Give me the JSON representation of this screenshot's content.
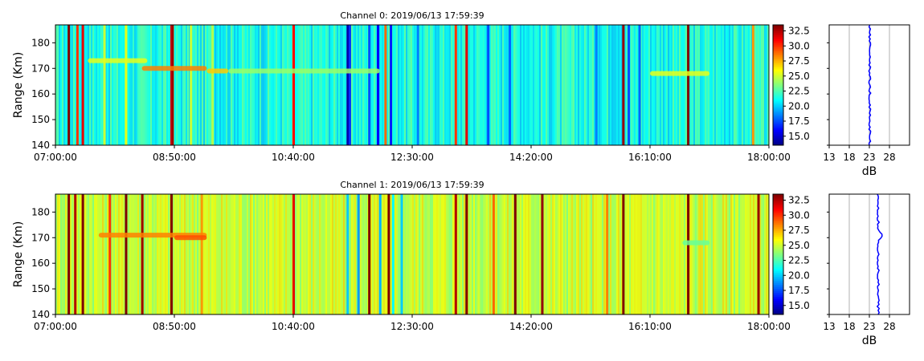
{
  "chart_data": [
    {
      "type": "heatmap",
      "title": "Channel 0: 2019/06/13 17:59:39",
      "ylabel": "Range (Km)",
      "ylim": [
        140,
        187
      ],
      "yticks": [
        "140",
        "150",
        "160",
        "170",
        "180"
      ],
      "xtick_labels": [
        "07:00:00",
        "08:50:00",
        "10:40:00",
        "12:30:00",
        "14:20:00",
        "16:10:00",
        "18:00:00"
      ],
      "colorbar": {
        "ticks": [
          "15.0",
          "17.5",
          "20.0",
          "22.5",
          "25.0",
          "27.5",
          "30.0",
          "32.5"
        ],
        "range": [
          13.5,
          33.5
        ],
        "colormap": "jet"
      },
      "profile": {
        "xlabel": "dB",
        "xticks": [
          "13",
          "18",
          "23",
          "28"
        ],
        "xlim": [
          13,
          33
        ],
        "mean_db": 23.1,
        "color": "#0000ff"
      },
      "background_db": 21.5,
      "stripes": [
        {
          "t": "07:12",
          "db": 33.5
        },
        {
          "t": "07:20",
          "db": 30.0
        },
        {
          "t": "07:25",
          "db": 31.5
        },
        {
          "t": "07:45",
          "db": 25.0
        },
        {
          "t": "08:05",
          "db": 25.5
        },
        {
          "t": "08:47",
          "db": 31.5
        },
        {
          "t": "08:48",
          "db": 33.0
        },
        {
          "t": "09:05",
          "db": 25.0
        },
        {
          "t": "09:25",
          "db": 24.5
        },
        {
          "t": "10:40",
          "db": 31.0
        },
        {
          "t": "11:30",
          "db": 14.5
        },
        {
          "t": "11:32",
          "db": 17.0
        },
        {
          "t": "11:50",
          "db": 17.5
        },
        {
          "t": "11:58",
          "db": 16.0
        },
        {
          "t": "12:10",
          "db": 16.5
        },
        {
          "t": "12:05",
          "db": 29.0
        },
        {
          "t": "12:35",
          "db": 18.5
        },
        {
          "t": "13:10",
          "db": 30.0
        },
        {
          "t": "13:20",
          "db": 31.5
        },
        {
          "t": "13:40",
          "db": 17.5
        },
        {
          "t": "14:00",
          "db": 18.0
        },
        {
          "t": "15:20",
          "db": 18.5
        },
        {
          "t": "15:45",
          "db": 33.0
        },
        {
          "t": "15:50",
          "db": 17.5
        },
        {
          "t": "16:00",
          "db": 18.0
        },
        {
          "t": "16:45",
          "db": 33.5
        },
        {
          "t": "17:45",
          "db": 28.0
        }
      ],
      "echoes": [
        {
          "t_start": "07:30",
          "t_end": "08:25",
          "range_km": 173,
          "db": 25.5
        },
        {
          "t_start": "08:20",
          "t_end": "09:20",
          "range_km": 170,
          "db": 28.5
        },
        {
          "t_start": "09:20",
          "t_end": "09:40",
          "range_km": 169,
          "db": 27.0
        },
        {
          "t_start": "09:40",
          "t_end": "12:00",
          "range_km": 169,
          "db": 24.0
        },
        {
          "t_start": "16:10",
          "t_end": "17:05",
          "range_km": 168,
          "db": 25.5
        }
      ]
    },
    {
      "type": "heatmap",
      "title": "Channel 1: 2019/06/13 17:59:39",
      "ylabel": "Range (Km)",
      "ylim": [
        140,
        187
      ],
      "yticks": [
        "140",
        "150",
        "160",
        "170",
        "180"
      ],
      "xtick_labels": [
        "07:00:00",
        "08:50:00",
        "10:40:00",
        "12:30:00",
        "14:20:00",
        "16:10:00",
        "18:00:00"
      ],
      "colorbar": {
        "ticks": [
          "15.0",
          "17.5",
          "20.0",
          "22.5",
          "25.0",
          "27.5",
          "30.0",
          "32.5"
        ],
        "range": [
          13.5,
          33.5
        ],
        "colormap": "jet"
      },
      "profile": {
        "xlabel": "dB",
        "xticks": [
          "13",
          "18",
          "23",
          "28"
        ],
        "xlim": [
          13,
          33
        ],
        "mean_db": 25.2,
        "color": "#0000ff"
      },
      "background_db": 25.0,
      "stripes": [
        {
          "t": "07:12",
          "db": 33.5
        },
        {
          "t": "07:18",
          "db": 32.5
        },
        {
          "t": "07:25",
          "db": 33.5
        },
        {
          "t": "07:50",
          "db": 30.0
        },
        {
          "t": "08:05",
          "db": 33.5
        },
        {
          "t": "08:20",
          "db": 33.0
        },
        {
          "t": "08:47",
          "db": 33.5
        },
        {
          "t": "09:15",
          "db": 28.0
        },
        {
          "t": "10:40",
          "db": 31.5
        },
        {
          "t": "11:30",
          "db": 20.0
        },
        {
          "t": "11:40",
          "db": 19.0
        },
        {
          "t": "11:50",
          "db": 33.5
        },
        {
          "t": "12:00",
          "db": 19.5
        },
        {
          "t": "12:08",
          "db": 33.5
        },
        {
          "t": "12:12",
          "db": 21.0
        },
        {
          "t": "12:20",
          "db": 20.0
        },
        {
          "t": "13:10",
          "db": 32.5
        },
        {
          "t": "13:20",
          "db": 33.5
        },
        {
          "t": "13:45",
          "db": 29.0
        },
        {
          "t": "14:05",
          "db": 33.5
        },
        {
          "t": "14:30",
          "db": 33.0
        },
        {
          "t": "15:30",
          "db": 28.5
        },
        {
          "t": "15:45",
          "db": 33.5
        },
        {
          "t": "16:45",
          "db": 33.5
        },
        {
          "t": "17:50",
          "db": 33.0
        }
      ],
      "echoes": [
        {
          "t_start": "07:40",
          "t_end": "09:20",
          "range_km": 171,
          "db": 28.5
        },
        {
          "t_start": "08:50",
          "t_end": "09:20",
          "range_km": 170,
          "db": 29.5
        },
        {
          "t_start": "16:40",
          "t_end": "17:05",
          "range_km": 168,
          "db": 23.0
        }
      ]
    }
  ]
}
